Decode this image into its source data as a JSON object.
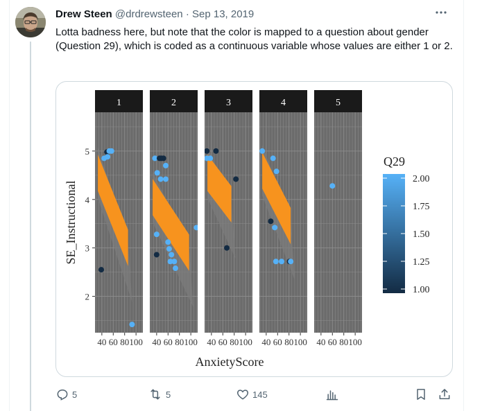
{
  "tweet": {
    "author_name": "Drew Steen",
    "handle": "@drdrewsteen",
    "separator": "·",
    "date": "Sep 13, 2019",
    "text": "Lotta badness here, but note that the color is mapped to a question about gender (Question 29), which is coded as a continuous variable whose values are either 1 or 2.",
    "more_icon": "more-dots-icon"
  },
  "actions": {
    "replies": "5",
    "retweets": "5",
    "likes": "145",
    "reply_icon": "reply-icon",
    "retweet_icon": "retweet-icon",
    "like_icon": "heart-icon",
    "views_icon": "views-icon",
    "bookmark_icon": "bookmark-icon",
    "share_icon": "share-icon"
  },
  "chart_data": {
    "type": "scatter",
    "xlabel": "AnxietyScore",
    "ylabel": "SE_Instructional",
    "facets": [
      "1",
      "2",
      "3",
      "4",
      "5"
    ],
    "x_ticks": [
      "40",
      "60",
      "80",
      "100"
    ],
    "y_ticks": [
      "2",
      "3",
      "4",
      "5"
    ],
    "xlim": [
      28,
      112
    ],
    "ylim": [
      1.25,
      5.8
    ],
    "legend": {
      "title": "Q29",
      "position": "right",
      "ticks": [
        "2.00",
        "1.75",
        "1.50",
        "1.25",
        "1.00"
      ],
      "low_color": "#132b43",
      "high_color": "#56b1f7"
    },
    "panel_background": "#6b6b6b",
    "strip_background": "#1a1a1a",
    "fit_band_color": "#f7931e",
    "panels": [
      {
        "facet": "1",
        "points": [
          {
            "x": 49,
            "y": 4.98,
            "q": 1
          },
          {
            "x": 53,
            "y": 5.0,
            "q": 2
          },
          {
            "x": 57,
            "y": 5.0,
            "q": 2
          },
          {
            "x": 44,
            "y": 4.85,
            "q": 2
          },
          {
            "x": 50,
            "y": 4.88,
            "q": 2
          },
          {
            "x": 39,
            "y": 2.55,
            "q": 1
          },
          {
            "x": 93,
            "y": 1.42,
            "q": 2
          }
        ],
        "fit": {
          "x1": 33,
          "y1": 4.55,
          "x2": 86,
          "y2": 3.0,
          "width": 0.75
        }
      },
      {
        "facet": "2",
        "points": [
          {
            "x": 37,
            "y": 4.85,
            "q": 2
          },
          {
            "x": 45,
            "y": 4.85,
            "q": 1
          },
          {
            "x": 48,
            "y": 4.85,
            "q": 1
          },
          {
            "x": 52,
            "y": 4.85,
            "q": 1
          },
          {
            "x": 56,
            "y": 4.7,
            "q": 2
          },
          {
            "x": 41,
            "y": 4.55,
            "q": 2
          },
          {
            "x": 47,
            "y": 4.42,
            "q": 2
          },
          {
            "x": 56,
            "y": 4.42,
            "q": 2
          },
          {
            "x": 40,
            "y": 3.28,
            "q": 2
          },
          {
            "x": 60,
            "y": 3.12,
            "q": 2
          },
          {
            "x": 62,
            "y": 2.98,
            "q": 2
          },
          {
            "x": 66,
            "y": 2.86,
            "q": 2
          },
          {
            "x": 71,
            "y": 2.72,
            "q": 2
          },
          {
            "x": 64,
            "y": 2.72,
            "q": 2
          },
          {
            "x": 73,
            "y": 2.58,
            "q": 2
          },
          {
            "x": 40,
            "y": 2.86,
            "q": 1
          },
          {
            "x": 110,
            "y": 3.42,
            "q": 2
          }
        ],
        "fit": {
          "x1": 33,
          "y1": 4.05,
          "x2": 97,
          "y2": 2.9,
          "width": 0.75
        }
      },
      {
        "facet": "3",
        "points": [
          {
            "x": 32,
            "y": 5.0,
            "q": 1
          },
          {
            "x": 48,
            "y": 5.0,
            "q": 1
          },
          {
            "x": 32,
            "y": 4.85,
            "q": 2
          },
          {
            "x": 38,
            "y": 4.85,
            "q": 2
          },
          {
            "x": 83,
            "y": 4.42,
            "q": 1
          },
          {
            "x": 67,
            "y": 3.0,
            "q": 1
          }
        ],
        "fit": {
          "x1": 33,
          "y1": 4.55,
          "x2": 75,
          "y2": 3.9,
          "width": 0.75
        }
      },
      {
        "facet": "4",
        "points": [
          {
            "x": 33,
            "y": 5.0,
            "q": 2
          },
          {
            "x": 52,
            "y": 4.85,
            "q": 2
          },
          {
            "x": 58,
            "y": 4.58,
            "q": 2
          },
          {
            "x": 48,
            "y": 3.55,
            "q": 1
          },
          {
            "x": 55,
            "y": 3.42,
            "q": 2
          },
          {
            "x": 57,
            "y": 2.72,
            "q": 2
          },
          {
            "x": 67,
            "y": 2.72,
            "q": 2
          },
          {
            "x": 81,
            "y": 2.72,
            "q": 1
          },
          {
            "x": 83,
            "y": 2.72,
            "q": 2
          }
        ],
        "fit": {
          "x1": 33,
          "y1": 4.6,
          "x2": 83,
          "y2": 3.45,
          "width": 0.75
        }
      },
      {
        "facet": "5",
        "points": [
          {
            "x": 60,
            "y": 4.28,
            "q": 2
          }
        ],
        "fit": null
      }
    ]
  }
}
